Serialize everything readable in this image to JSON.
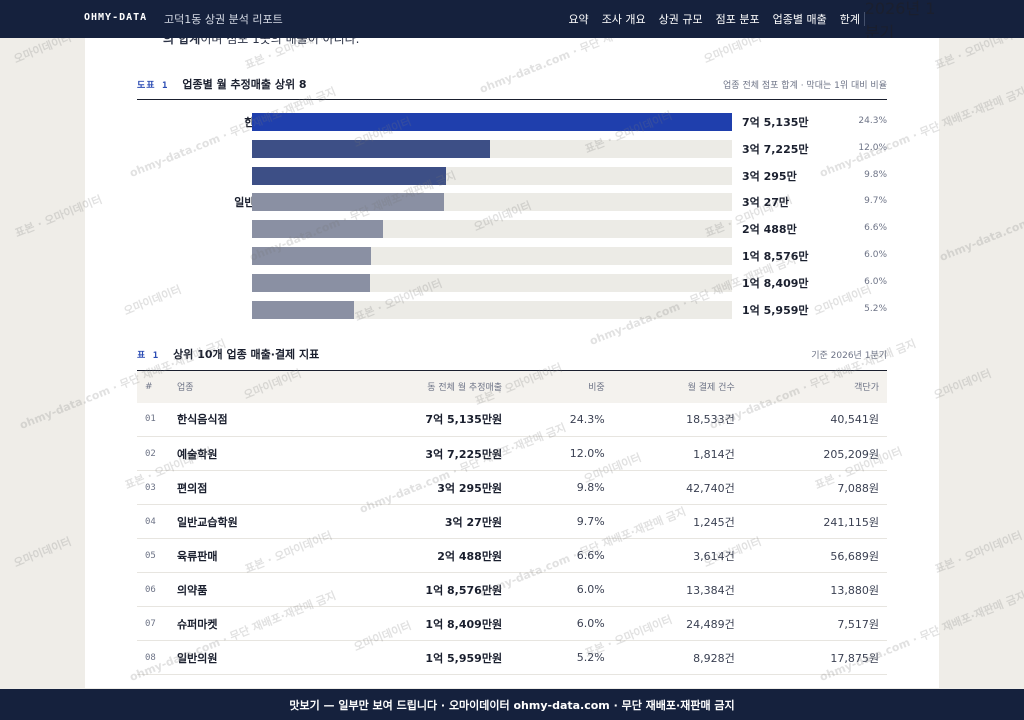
{
  "header": {
    "brand": "OHMY-DATA",
    "report_title": "고덕1동 상권 분석 리포트",
    "nav": [
      "요약",
      "조사 개요",
      "상권 규모",
      "점포 분포",
      "업종별 매출",
      "한계"
    ],
    "period": "2026년 1분기"
  },
  "cut_text": {
    "bold": "의 합계",
    "rest": "이며 점포 1곳의 매출이 아니다."
  },
  "figure1": {
    "code": "도표 1",
    "title": "업종별 월 추정매출 상위 8",
    "note": "업종 전체 점포 합계 · 막대는 1위 대비 비율"
  },
  "chart_data": {
    "type": "bar",
    "title": "업종별 월 추정매출 상위 8",
    "categories": [
      "한식음식점",
      "예술학원",
      "편의점",
      "일반교습학원",
      "육류판매",
      "의약품",
      "슈퍼마켓",
      "일반의원"
    ],
    "values": [
      751350000,
      372250000,
      302950000,
      300270000,
      204880000,
      185760000,
      184090000,
      159590000
    ],
    "value_labels": [
      "7억 5,135만",
      "3억 7,225만",
      "3억 295만",
      "3억 27만",
      "2억 488만",
      "1억 8,576만",
      "1억 8,409만",
      "1억 5,959만"
    ],
    "shares": [
      "24.3%",
      "12.0%",
      "9.8%",
      "9.7%",
      "6.6%",
      "6.0%",
      "6.0%",
      "5.2%"
    ],
    "colors": [
      "#1f3fad",
      "#3d4f86",
      "#3d4f86",
      "#8a90a3",
      "#8a90a3",
      "#8a90a3",
      "#8a90a3",
      "#8a90a3"
    ],
    "orientation": "horizontal"
  },
  "table1": {
    "code": "표 1",
    "title": "상위 10개 업종 매출·결제 지표",
    "note": "기준 2026년 1분기",
    "columns": [
      "#",
      "업종",
      "동 전체 월 추정매출",
      "비중",
      "월 결제 건수",
      "객단가"
    ],
    "rows": [
      [
        "01",
        "한식음식점",
        "7억 5,135만원",
        "24.3%",
        "18,533건",
        "40,541원"
      ],
      [
        "02",
        "예술학원",
        "3억 7,225만원",
        "12.0%",
        "1,814건",
        "205,209원"
      ],
      [
        "03",
        "편의점",
        "3억 295만원",
        "9.8%",
        "42,740건",
        "7,088원"
      ],
      [
        "04",
        "일반교습학원",
        "3억 27만원",
        "9.7%",
        "1,245건",
        "241,115원"
      ],
      [
        "05",
        "육류판매",
        "2억 488만원",
        "6.6%",
        "3,614건",
        "56,689원"
      ],
      [
        "06",
        "의약품",
        "1억 8,576만원",
        "6.0%",
        "13,384건",
        "13,880원"
      ],
      [
        "07",
        "슈퍼마켓",
        "1억 8,409만원",
        "6.0%",
        "24,489건",
        "7,517원"
      ],
      [
        "08",
        "일반의원",
        "1억 5,959만원",
        "5.2%",
        "8,928건",
        "17,875원"
      ]
    ]
  },
  "watermark": {
    "a": "오마이데이터",
    "b": "표본 · 오마이데이터",
    "c": "ohmy-data.com · 무단 재배포·재판매 금지"
  },
  "footer": {
    "notice": "맛보기 — 일부만 보여 드립니다 · 오마이데이터 ohmy-data.com · 무단 재배포·재판매 금지"
  }
}
